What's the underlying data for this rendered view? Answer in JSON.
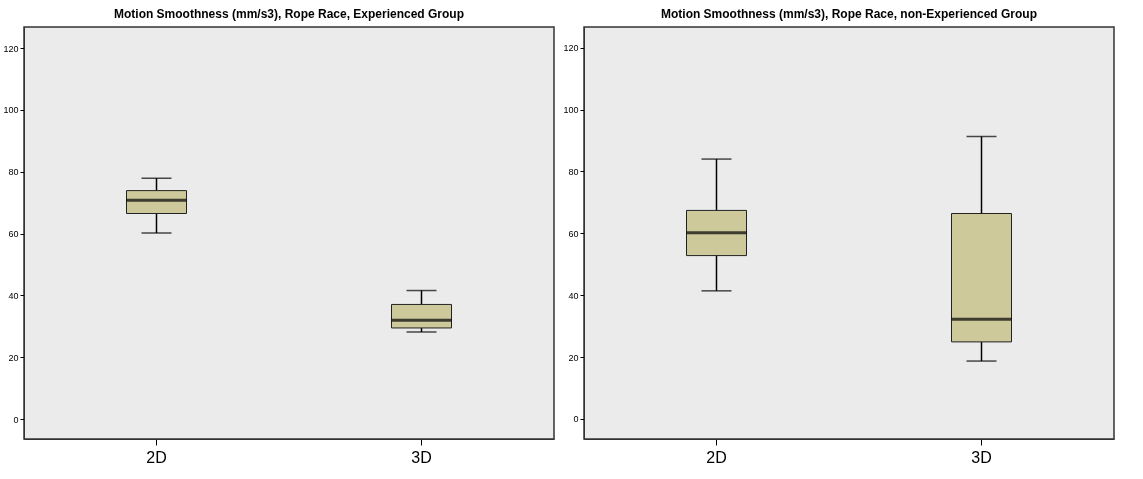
{
  "chart_data": [
    {
      "type": "box",
      "title": "Motion Smoothness (mm/s3), Rope Race, Experienced Group",
      "categories": [
        "2D",
        "3D"
      ],
      "ylim": [
        -6.4,
        126.8
      ],
      "yticks": [
        0,
        20,
        40,
        60,
        80,
        100,
        120
      ],
      "series": [
        {
          "color": "#cdc99a",
          "boxes": [
            {
              "low": 60.2,
              "q1": 66.5,
              "median": 70.8,
              "q3": 73.9,
              "high": 77.9
            },
            {
              "low": 28.2,
              "q1": 29.5,
              "median": 32.0,
              "q3": 37.1,
              "high": 41.6
            }
          ]
        }
      ]
    },
    {
      "type": "box",
      "title": "Motion Smoothness (mm/s3), Rope Race, non-Experienced Group",
      "categories": [
        "2D",
        "3D"
      ],
      "ylim": [
        -6.5,
        126.7
      ],
      "yticks": [
        0,
        20,
        40,
        60,
        80,
        100,
        120
      ],
      "series": [
        {
          "color": "#cdc99a",
          "boxes": [
            {
              "low": 41.4,
              "q1": 52.8,
              "median": 60.2,
              "q3": 67.4,
              "high": 84.0
            },
            {
              "low": 18.7,
              "q1": 24.9,
              "median": 32.2,
              "q3": 66.4,
              "high": 91.3
            }
          ]
        }
      ]
    }
  ]
}
